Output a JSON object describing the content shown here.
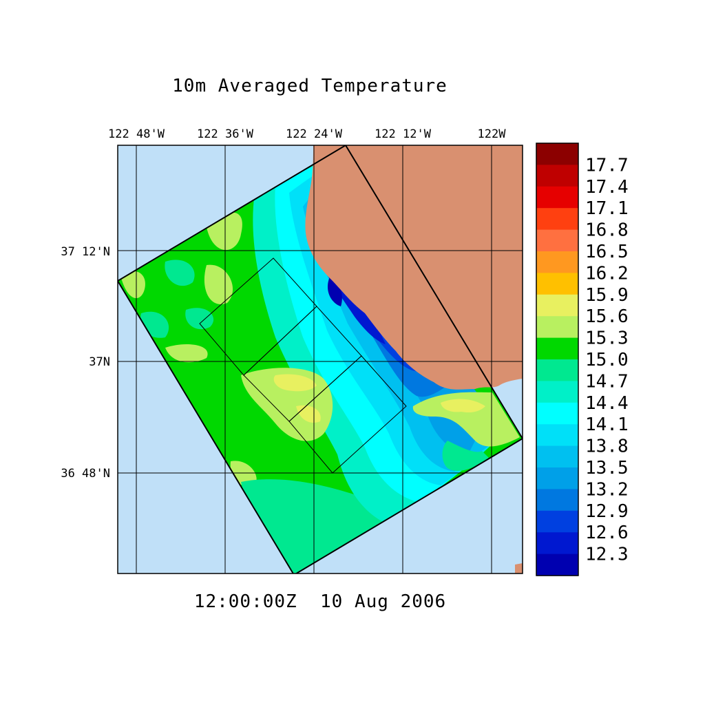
{
  "figure": {
    "title": "10m Averaged Temperature",
    "timestamp": "12:00:00Z  10 Aug 2006"
  },
  "map": {
    "lon_ticks": [
      "122 48'W",
      "122 36'W",
      "122 24'W",
      "122 12'W",
      "122W"
    ],
    "lat_ticks": [
      "37 12'N",
      "37N",
      "36 48'N"
    ],
    "colors": {
      "ocean": "#c0e0f8",
      "land": "#d99070",
      "grid": "#000000"
    }
  },
  "colorbar": {
    "labels": [
      "17.7",
      "17.4",
      "17.1",
      "16.8",
      "16.5",
      "16.2",
      "15.9",
      "15.6",
      "15.3",
      "15.0",
      "14.7",
      "14.4",
      "14.1",
      "13.8",
      "13.5",
      "13.2",
      "12.9",
      "12.6",
      "12.3"
    ],
    "colors": [
      "#8c0000",
      "#bf0000",
      "#e60000",
      "#ff4010",
      "#ff7040",
      "#ff9820",
      "#ffc000",
      "#e8f060",
      "#b8f060",
      "#00d800",
      "#00e890",
      "#00f0c8",
      "#00ffff",
      "#00e0f8",
      "#00c0f0",
      "#00a0e8",
      "#0078e0",
      "#0040e0",
      "#0018d0",
      "#0000b0"
    ]
  }
}
